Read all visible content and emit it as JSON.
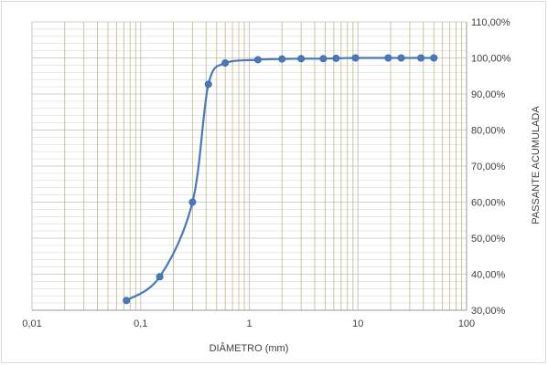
{
  "chart_data": {
    "type": "scatter",
    "title": "",
    "xlabel": "DIÂMETRO (mm)",
    "ylabel": "PASSANTE ACUMULADA",
    "x_scale": "log",
    "xlim": [
      0.01,
      100
    ],
    "ylim": [
      30,
      110
    ],
    "x_tick_labels": [
      "0,01",
      "0,1",
      "1",
      "10",
      "100"
    ],
    "y_tick_labels": [
      "30,00%",
      "40,00%",
      "50,00%",
      "60,00%",
      "70,00%",
      "80,00%",
      "90,00%",
      "100,00%",
      "110,00%"
    ],
    "y_axis_position": "right",
    "grid": true,
    "legend": "none",
    "series": [
      {
        "x": [
          0.074,
          0.15,
          0.3,
          0.42,
          0.6,
          1.2,
          2.0,
          3.0,
          4.8,
          6.3,
          9.5,
          19,
          25,
          38,
          50
        ],
        "y": [
          32.7,
          39.3,
          60.0,
          92.7,
          98.6,
          99.5,
          99.7,
          99.8,
          99.8,
          99.9,
          100.0,
          100.0,
          100.0,
          100.0,
          100.0
        ]
      }
    ],
    "colors": {
      "line": "#4a78bc",
      "marker": "#4a78bc",
      "major_grid": "#bfbfbf",
      "minor_grid": "#c4c08c"
    }
  }
}
